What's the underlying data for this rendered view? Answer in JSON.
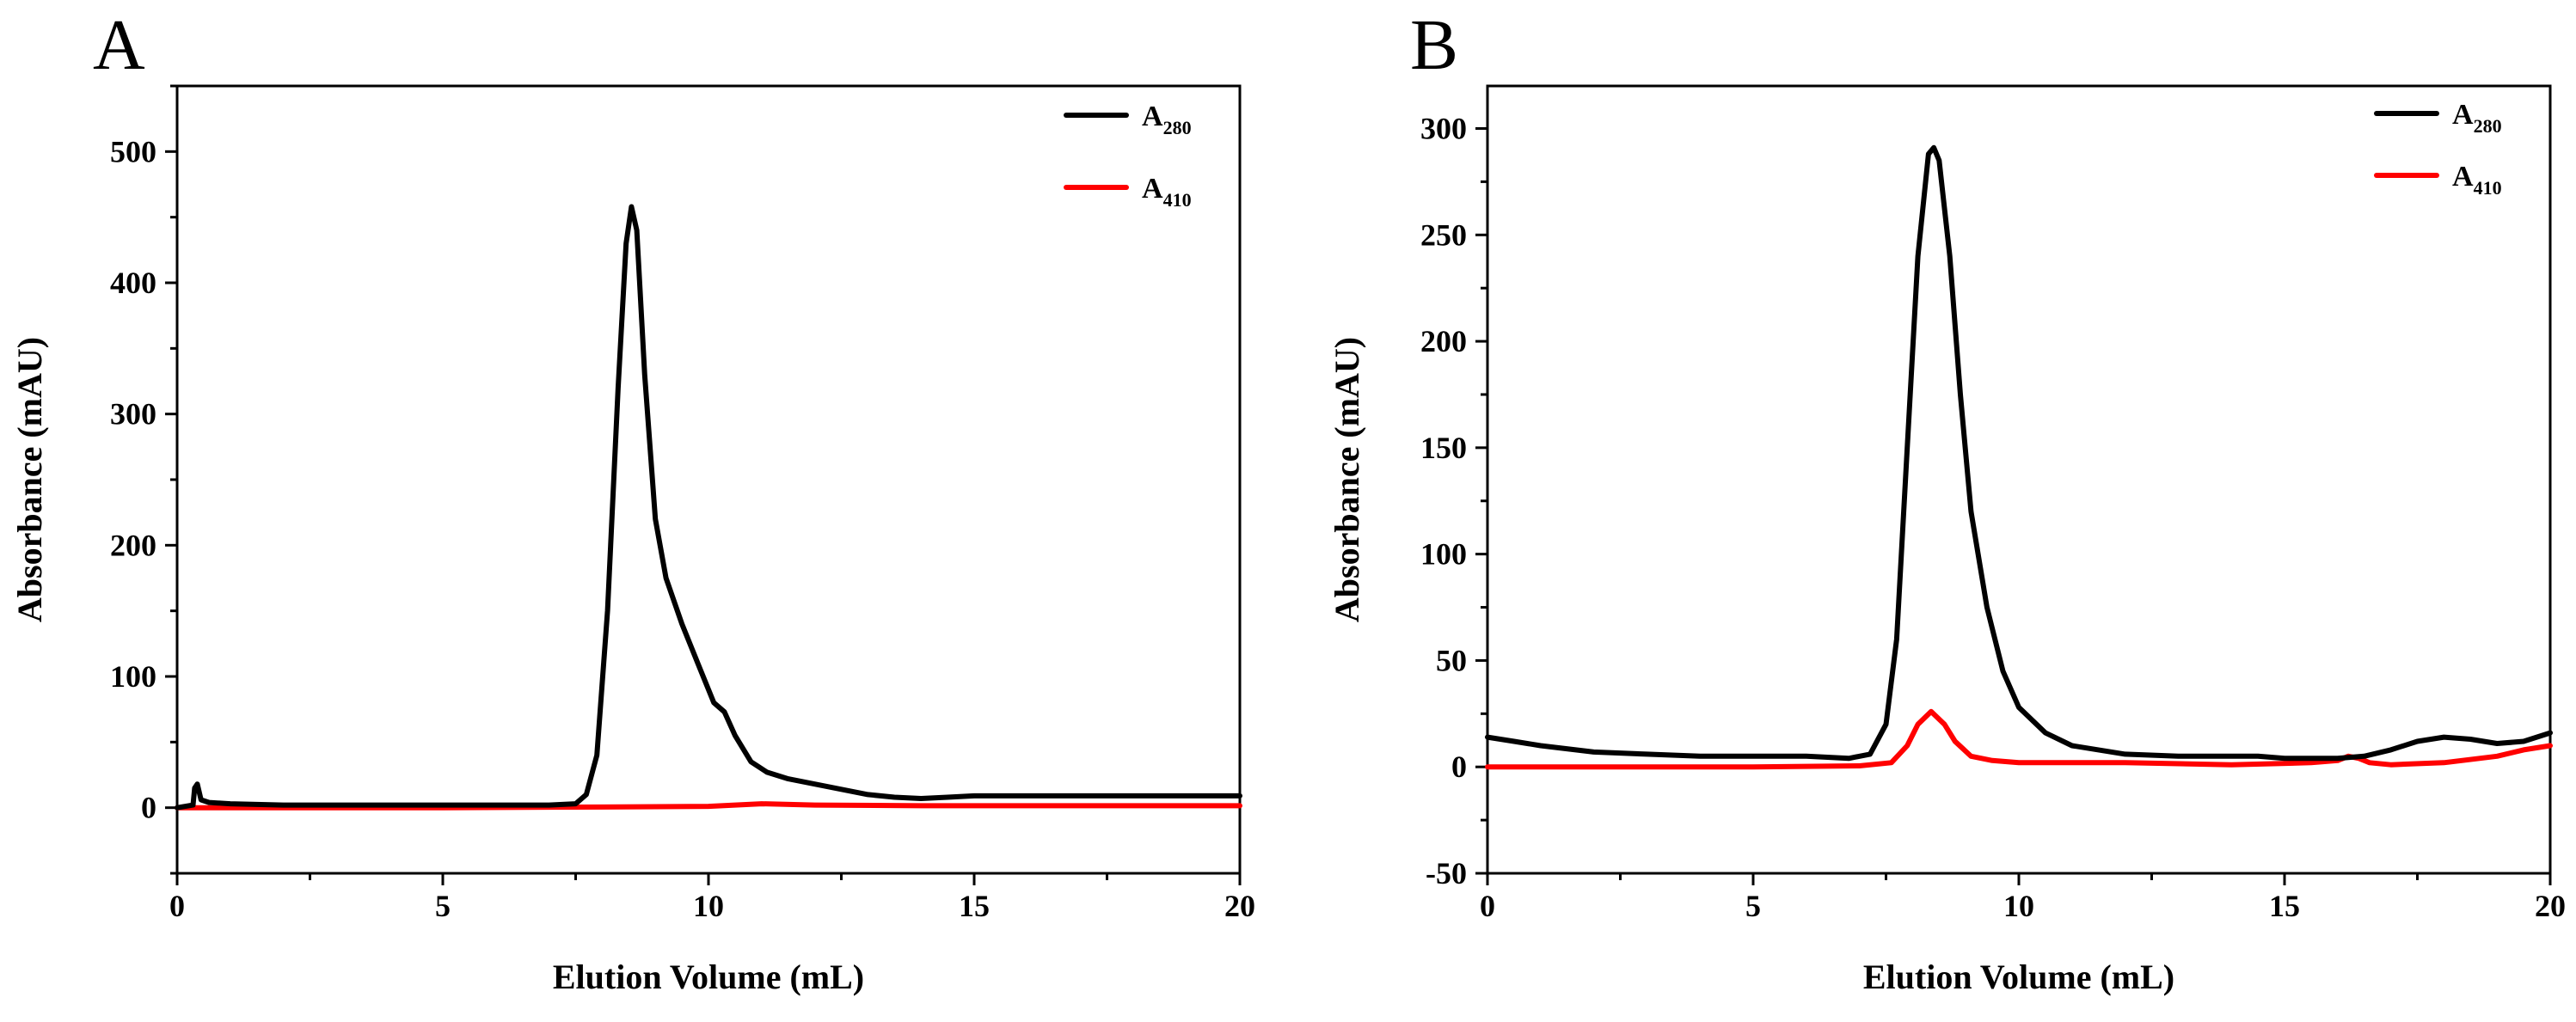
{
  "chart_data": [
    {
      "panel_label": "A",
      "type": "line",
      "xlabel": "Elution Volume (mL)",
      "ylabel": "Absorbance (mAU)",
      "xlim": [
        0,
        20
      ],
      "ylim": [
        -50,
        550
      ],
      "xticks": [
        0,
        5,
        10,
        15,
        20
      ],
      "yticks": [
        0,
        100,
        200,
        300,
        400,
        500
      ],
      "legend_position": "top-right",
      "series": [
        {
          "name": "A280",
          "label_main": "A",
          "label_sub": "280",
          "color": "#000000",
          "points": [
            [
              0,
              0
            ],
            [
              0.3,
              2
            ],
            [
              0.33,
              15
            ],
            [
              0.38,
              18
            ],
            [
              0.45,
              6
            ],
            [
              0.6,
              4
            ],
            [
              1,
              3
            ],
            [
              2,
              2
            ],
            [
              3,
              2
            ],
            [
              4,
              2
            ],
            [
              5,
              2
            ],
            [
              6,
              2
            ],
            [
              7,
              2
            ],
            [
              7.5,
              3
            ],
            [
              7.7,
              10
            ],
            [
              7.9,
              40
            ],
            [
              8.1,
              150
            ],
            [
              8.3,
              320
            ],
            [
              8.45,
              430
            ],
            [
              8.55,
              458
            ],
            [
              8.65,
              440
            ],
            [
              8.8,
              330
            ],
            [
              9.0,
              220
            ],
            [
              9.2,
              175
            ],
            [
              9.5,
              140
            ],
            [
              9.8,
              110
            ],
            [
              10.1,
              80
            ],
            [
              10.3,
              73
            ],
            [
              10.5,
              55
            ],
            [
              10.8,
              35
            ],
            [
              11.1,
              27
            ],
            [
              11.5,
              22
            ],
            [
              12,
              18
            ],
            [
              12.5,
              14
            ],
            [
              13,
              10
            ],
            [
              13.5,
              8
            ],
            [
              14,
              7
            ],
            [
              14.5,
              8
            ],
            [
              15,
              9
            ],
            [
              16,
              9
            ],
            [
              17,
              9
            ],
            [
              18,
              9
            ],
            [
              19,
              9
            ],
            [
              20,
              9
            ]
          ]
        },
        {
          "name": "A410",
          "label_main": "A",
          "label_sub": "410",
          "color": "#ff0000",
          "points": [
            [
              0,
              0
            ],
            [
              5,
              0
            ],
            [
              8,
              0.5
            ],
            [
              10,
              1
            ],
            [
              11,
              3
            ],
            [
              12,
              2
            ],
            [
              14,
              1.5
            ],
            [
              16,
              1.5
            ],
            [
              18,
              1.5
            ],
            [
              20,
              1.5
            ]
          ]
        }
      ]
    },
    {
      "panel_label": "B",
      "type": "line",
      "xlabel": "Elution Volume (mL)",
      "ylabel": "Absorbance (mAU)",
      "xlim": [
        0,
        20
      ],
      "ylim": [
        -50,
        320
      ],
      "xticks": [
        0,
        5,
        10,
        15,
        20
      ],
      "yticks": [
        -50,
        0,
        50,
        100,
        150,
        200,
        250,
        300
      ],
      "legend_position": "top-right",
      "series": [
        {
          "name": "A280",
          "label_main": "A",
          "label_sub": "280",
          "color": "#000000",
          "points": [
            [
              0,
              14
            ],
            [
              0.5,
              12
            ],
            [
              1,
              10
            ],
            [
              2,
              7
            ],
            [
              3,
              6
            ],
            [
              4,
              5
            ],
            [
              5,
              5
            ],
            [
              6,
              5
            ],
            [
              6.8,
              4
            ],
            [
              7.2,
              6
            ],
            [
              7.5,
              20
            ],
            [
              7.7,
              60
            ],
            [
              7.9,
              150
            ],
            [
              8.1,
              240
            ],
            [
              8.3,
              288
            ],
            [
              8.4,
              291
            ],
            [
              8.5,
              285
            ],
            [
              8.7,
              240
            ],
            [
              8.9,
              175
            ],
            [
              9.1,
              120
            ],
            [
              9.4,
              75
            ],
            [
              9.7,
              45
            ],
            [
              10,
              28
            ],
            [
              10.5,
              16
            ],
            [
              11,
              10
            ],
            [
              12,
              6
            ],
            [
              13,
              5
            ],
            [
              14,
              5
            ],
            [
              14.5,
              5
            ],
            [
              15,
              4
            ],
            [
              16,
              4
            ],
            [
              16.5,
              5
            ],
            [
              17,
              8
            ],
            [
              17.5,
              12
            ],
            [
              18,
              14
            ],
            [
              18.5,
              13
            ],
            [
              19,
              11
            ],
            [
              19.5,
              12
            ],
            [
              20,
              16
            ]
          ]
        },
        {
          "name": "A410",
          "label_main": "A",
          "label_sub": "410",
          "color": "#ff0000",
          "points": [
            [
              0,
              0
            ],
            [
              2,
              0
            ],
            [
              5,
              0
            ],
            [
              7,
              0.5
            ],
            [
              7.6,
              2
            ],
            [
              7.9,
              10
            ],
            [
              8.1,
              20
            ],
            [
              8.35,
              26
            ],
            [
              8.6,
              20
            ],
            [
              8.8,
              12
            ],
            [
              9.1,
              5
            ],
            [
              9.5,
              3
            ],
            [
              10,
              2
            ],
            [
              11,
              2
            ],
            [
              12,
              2
            ],
            [
              14,
              1
            ],
            [
              15.5,
              2
            ],
            [
              16,
              3
            ],
            [
              16.2,
              5
            ],
            [
              16.4,
              4
            ],
            [
              16.6,
              2
            ],
            [
              17,
              1
            ],
            [
              18,
              2
            ],
            [
              19,
              5
            ],
            [
              19.5,
              8
            ],
            [
              20,
              10
            ]
          ]
        }
      ]
    }
  ]
}
